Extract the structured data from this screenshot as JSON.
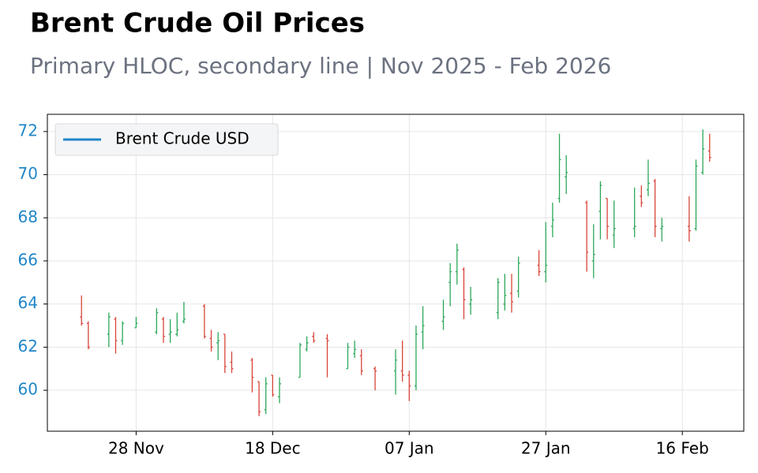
{
  "chart_data": {
    "type": "ohlc",
    "title": "Brent Crude Oil Prices",
    "subtitle": "Primary HLOC, secondary line | Nov 2025 - Feb 2026",
    "x": [
      "20 Nov",
      "21 Nov",
      "24 Nov",
      "25 Nov",
      "26 Nov",
      "28 Nov",
      "01 Dec",
      "02 Dec",
      "03 Dec",
      "04 Dec",
      "05 Dec",
      "08 Dec",
      "09 Dec",
      "10 Dec",
      "11 Dec",
      "12 Dec",
      "15 Dec",
      "16 Dec",
      "17 Dec",
      "18 Dec",
      "19 Dec",
      "22 Dec",
      "23 Dec",
      "24 Dec",
      "26 Dec",
      "29 Dec",
      "30 Dec",
      "31 Dec",
      "02 Jan",
      "05 Jan",
      "06 Jan",
      "07 Jan",
      "08 Jan",
      "09 Jan",
      "12 Jan",
      "13 Jan",
      "14 Jan",
      "15 Jan",
      "16 Jan",
      "20 Jan",
      "21 Jan",
      "22 Jan",
      "23 Jan",
      "26 Jan",
      "27 Jan",
      "28 Jan",
      "29 Jan",
      "30 Jan",
      "02 Feb",
      "03 Feb",
      "04 Feb",
      "05 Feb",
      "06 Feb",
      "09 Feb",
      "10 Feb",
      "11 Feb",
      "12 Feb",
      "13 Feb",
      "17 Feb",
      "18 Feb",
      "19 Feb",
      "20 Feb"
    ],
    "open": [
      63.4,
      63.1,
      62.6,
      63.3,
      62.3,
      62.9,
      62.7,
      63.3,
      62.6,
      62.6,
      63.2,
      63.9,
      62.4,
      62.2,
      62.6,
      61.3,
      61.4,
      60.4,
      59.1,
      60.7,
      59.7,
      60.6,
      61.9,
      62.5,
      62.4,
      61.0,
      61.7,
      61.6,
      61.0,
      60.9,
      60.9,
      60.7,
      60.2,
      62.7,
      63.2,
      65.0,
      65.5,
      65.6,
      64.0,
      63.6,
      64.0,
      64.5,
      64.6,
      65.8,
      65.5,
      67.6,
      68.9,
      69.9,
      68.7,
      66.0,
      68.3,
      68.9,
      67.2,
      67.5,
      69.0,
      69.3,
      69.7,
      67.5,
      67.6,
      67.5,
      70.1,
      71.1
    ],
    "high": [
      64.4,
      63.2,
      63.6,
      63.4,
      63.2,
      63.4,
      63.8,
      63.4,
      63.3,
      63.6,
      64.1,
      64.0,
      62.8,
      62.7,
      62.6,
      61.8,
      61.5,
      60.4,
      60.6,
      60.7,
      60.6,
      62.2,
      62.5,
      62.7,
      62.6,
      62.2,
      62.3,
      61.9,
      61.1,
      61.9,
      62.3,
      60.9,
      63.0,
      63.9,
      64.2,
      65.9,
      66.8,
      65.7,
      64.8,
      65.2,
      65.4,
      65.4,
      66.2,
      66.5,
      67.8,
      68.7,
      71.9,
      70.9,
      68.8,
      67.7,
      69.7,
      68.9,
      68.8,
      69.4,
      69.5,
      70.7,
      69.8,
      68.0,
      69.0,
      70.7,
      72.1,
      71.9
    ],
    "low": [
      63.0,
      61.9,
      62.0,
      61.7,
      62.1,
      62.9,
      62.6,
      62.2,
      62.2,
      62.5,
      63.1,
      62.4,
      61.8,
      61.4,
      60.8,
      60.8,
      59.9,
      58.8,
      58.9,
      59.7,
      59.4,
      60.6,
      61.8,
      62.2,
      60.6,
      61.0,
      61.5,
      60.7,
      60.0,
      59.8,
      60.4,
      59.5,
      60.0,
      61.9,
      62.8,
      63.9,
      64.9,
      63.3,
      63.5,
      63.3,
      63.7,
      63.6,
      64.3,
      65.3,
      65.0,
      67.1,
      68.7,
      69.1,
      65.5,
      65.2,
      67.0,
      67.0,
      66.6,
      67.1,
      68.5,
      69.0,
      67.1,
      66.9,
      66.9,
      67.4,
      70.0,
      70.6
    ],
    "close": [
      63.1,
      62.0,
      63.4,
      62.3,
      63.1,
      63.1,
      63.6,
      62.5,
      62.7,
      62.8,
      63.3,
      62.5,
      62.0,
      62.3,
      61.1,
      61.0,
      60.6,
      59.0,
      60.3,
      59.8,
      60.3,
      62.1,
      62.2,
      62.3,
      62.3,
      62.0,
      61.9,
      60.9,
      60.9,
      61.4,
      60.7,
      60.2,
      62.6,
      63.0,
      63.4,
      65.5,
      66.5,
      64.2,
      64.2,
      65.0,
      64.4,
      64.1,
      65.9,
      65.5,
      65.8,
      67.9,
      70.7,
      70.1,
      66.4,
      66.3,
      69.5,
      67.6,
      67.5,
      67.6,
      68.7,
      69.6,
      67.6,
      67.6,
      67.4,
      70.4,
      71.2,
      70.8
    ],
    "up_color": "#2ca85a",
    "down_color": "#d9443a",
    "legend": {
      "position": "upper left",
      "entries": [
        {
          "name": "Brent Crude USD",
          "color": "#1f86c8"
        }
      ]
    },
    "xlim": [
      "15 Nov",
      "25 Feb"
    ],
    "xticks": [
      "28 Nov",
      "18 Dec",
      "07 Jan",
      "27 Jan",
      "16 Feb"
    ],
    "ylim": [
      58.1,
      72.8
    ],
    "yticks": [
      60,
      62,
      64,
      66,
      68,
      70,
      72
    ],
    "ytick_color": "#1f86c8",
    "grid": true
  }
}
